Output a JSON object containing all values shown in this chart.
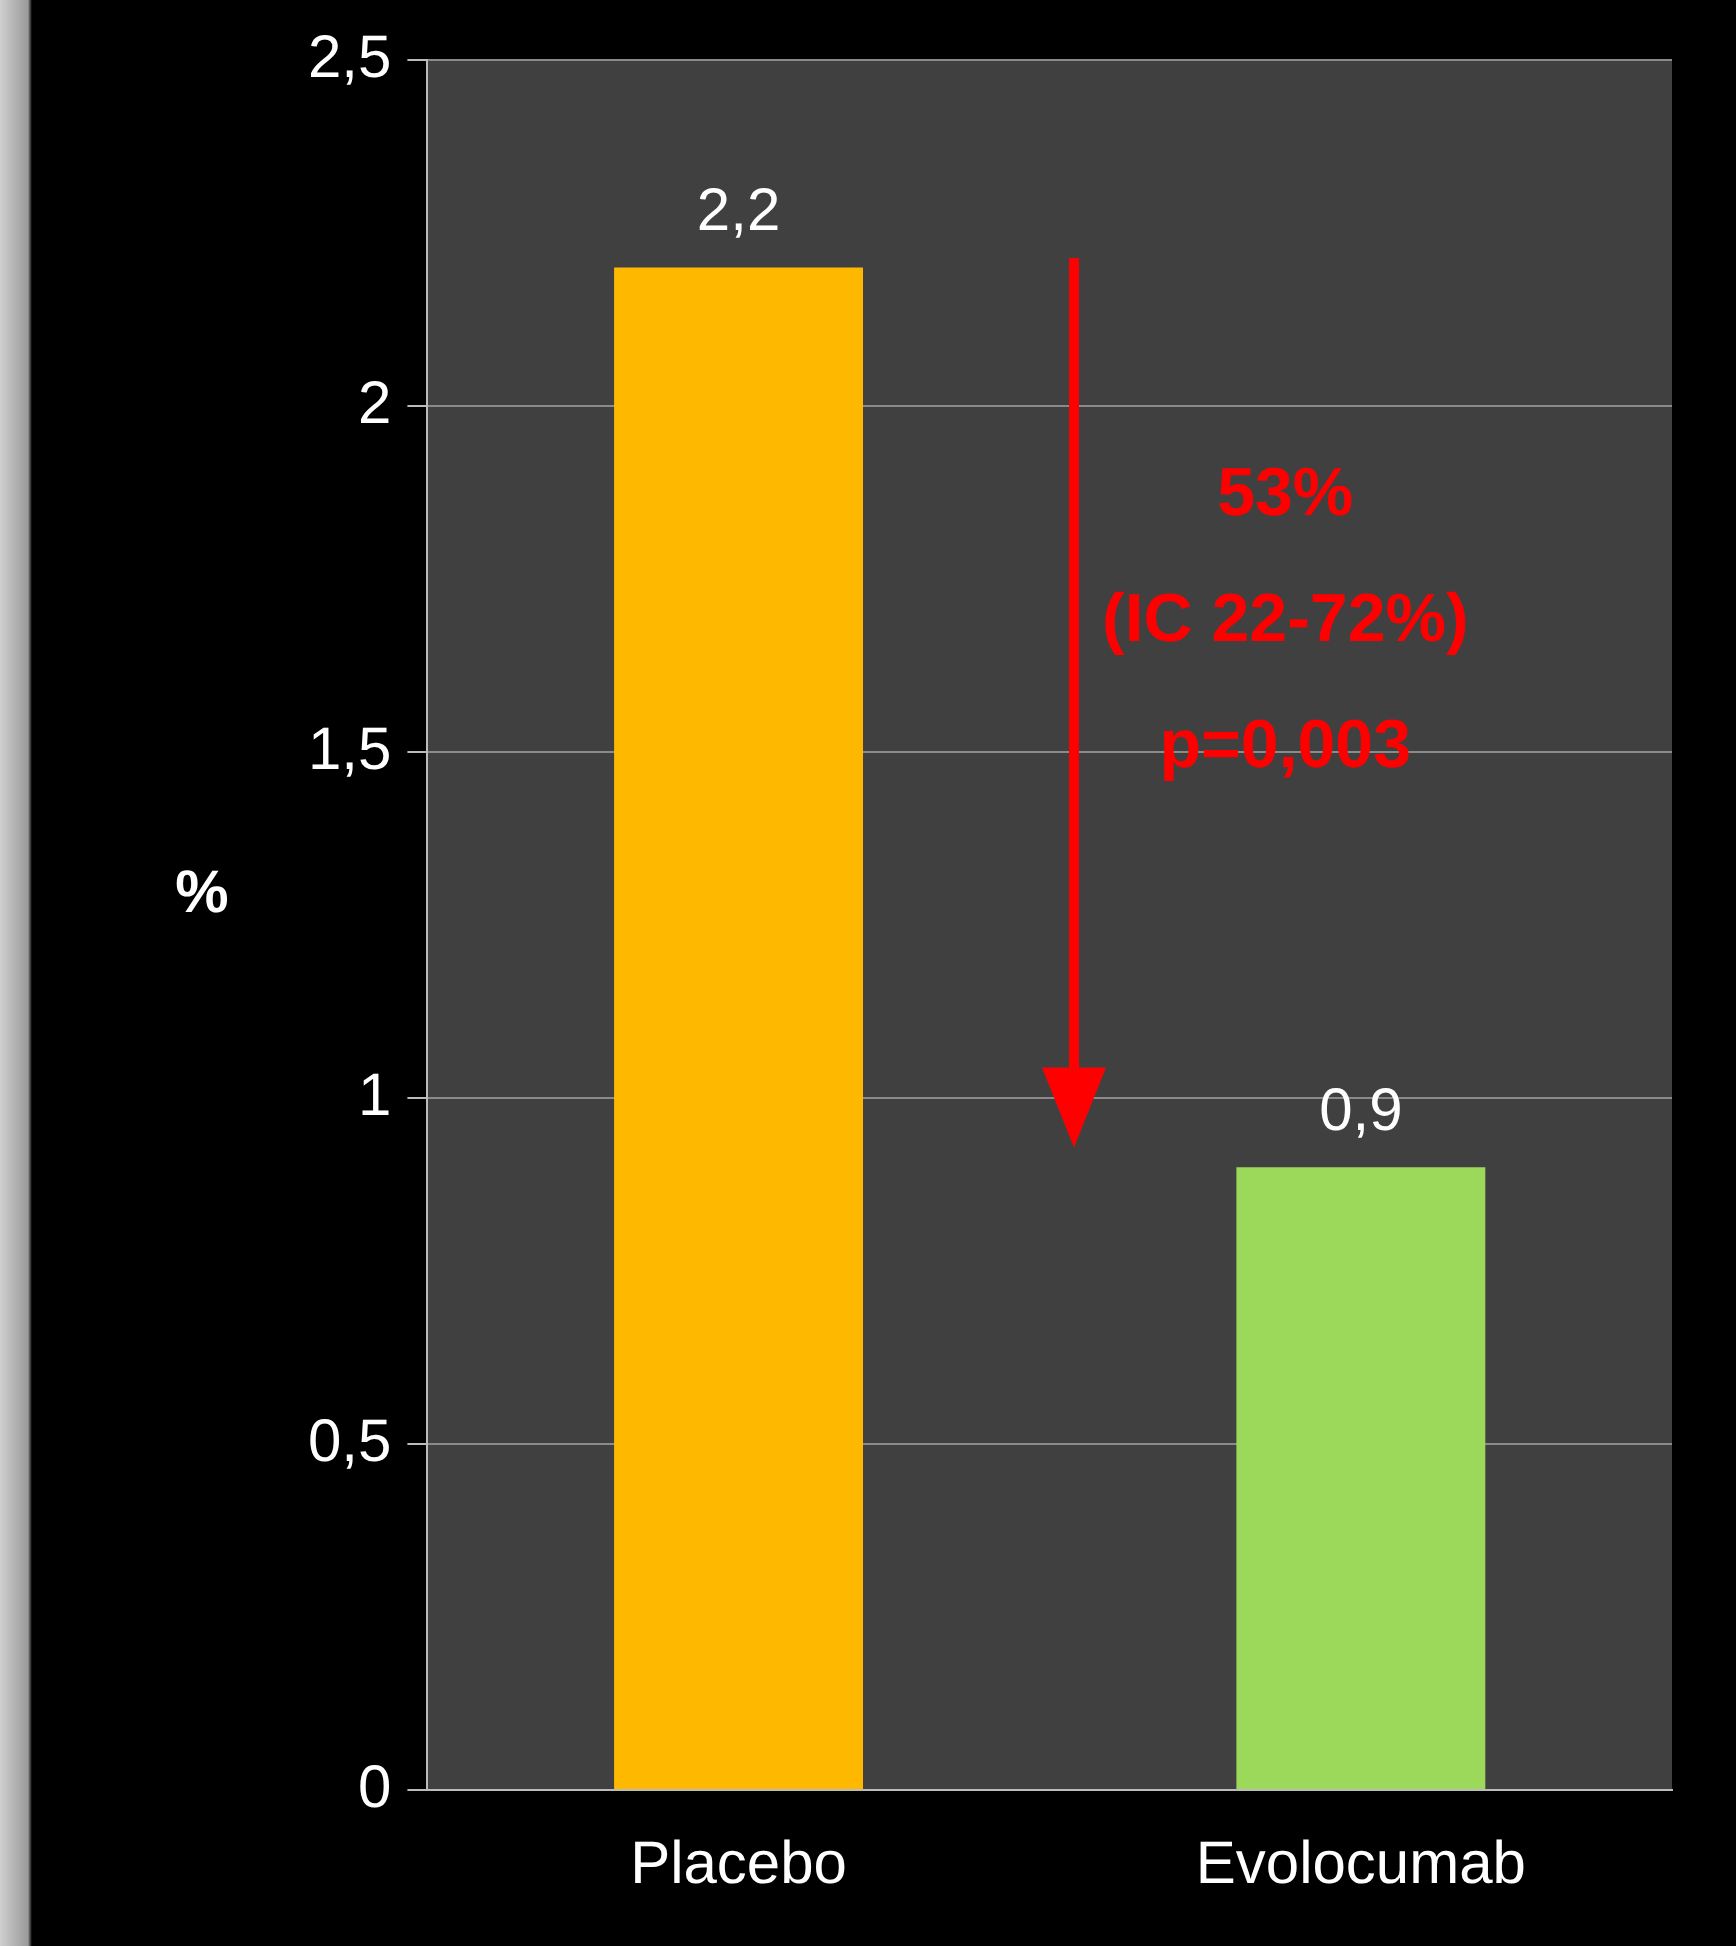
{
  "chart_data": {
    "type": "bar",
    "ylabel": "%",
    "categories": [
      "Placebo",
      "Evolocumab"
    ],
    "values": [
      2.2,
      0.9
    ],
    "colors": [
      "#ffb800",
      "#9cd85a"
    ],
    "value_labels": [
      "2,2",
      "0,9"
    ],
    "ylim": [
      0,
      2.5
    ],
    "yticks": [
      0,
      {
        "value": 0.5,
        "label": "0,5"
      },
      1,
      {
        "value": 1.5,
        "label": "1,5"
      },
      2,
      {
        "value": 2.5,
        "label": "2,5"
      }
    ],
    "grid": "y",
    "annotations": [
      "53%",
      "(IC 22-72%)",
      "p=0,003"
    ]
  }
}
